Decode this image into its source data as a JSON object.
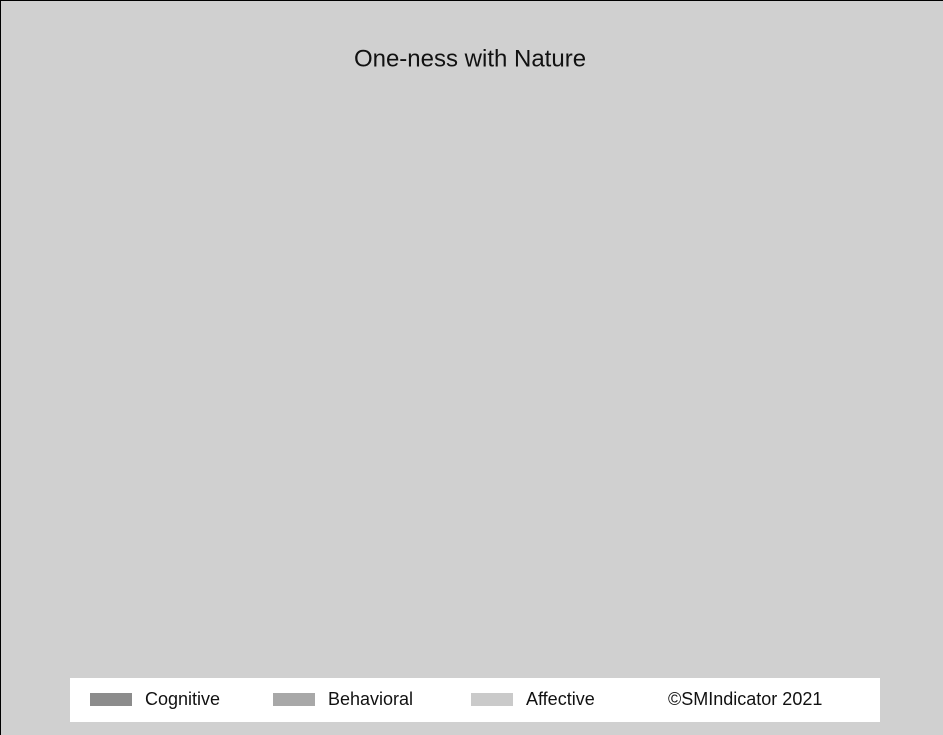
{
  "chart_data": {
    "type": "bar",
    "title": "One-ness with Nature",
    "series": [
      {
        "name": "Cognitive",
        "color": "#8c8c8c"
      },
      {
        "name": "Behavioral",
        "color": "#a8a8a8"
      },
      {
        "name": "Affective",
        "color": "#cacaca"
      }
    ],
    "credit": "©SMIndicator 2021",
    "background": "#d0d0d0"
  }
}
